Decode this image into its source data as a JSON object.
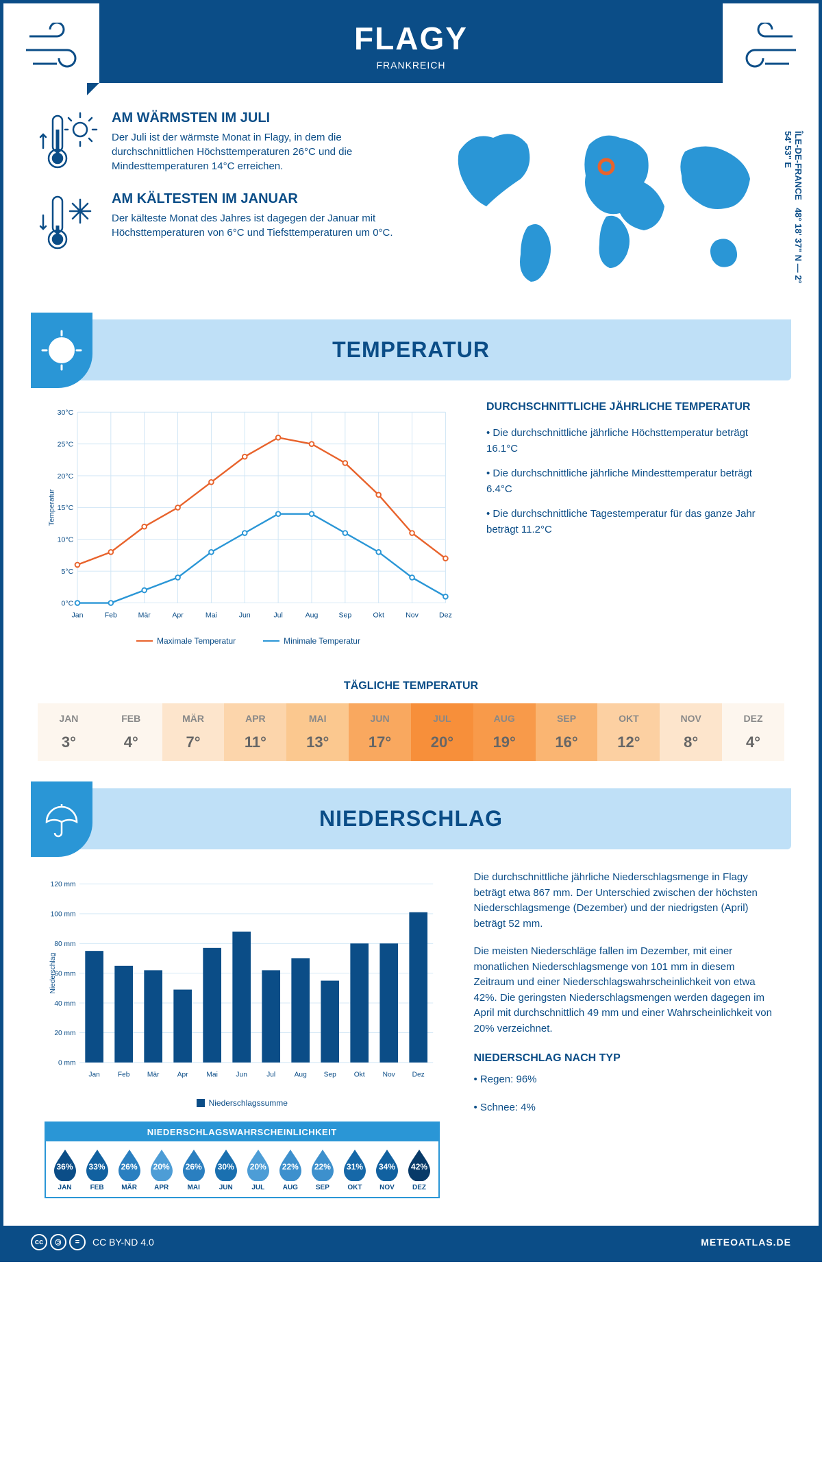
{
  "header": {
    "title": "FLAGY",
    "subtitle": "FRANKREICH"
  },
  "coords": "48° 18' 37\" N — 2° 54' 53\" E",
  "region": "ÎLE-DE-FRANCE",
  "warmest": {
    "title": "AM WÄRMSTEN IM JULI",
    "text": "Der Juli ist der wärmste Monat in Flagy, in dem die durchschnittlichen Höchsttemperaturen 26°C und die Mindesttemperaturen 14°C erreichen."
  },
  "coldest": {
    "title": "AM KÄLTESTEN IM JANUAR",
    "text": "Der kälteste Monat des Jahres ist dagegen der Januar mit Höchsttemperaturen von 6°C und Tiefsttemperaturen um 0°C."
  },
  "temp_section": {
    "title": "TEMPERATUR",
    "chart": {
      "type": "line",
      "months": [
        "Jan",
        "Feb",
        "Mär",
        "Apr",
        "Mai",
        "Jun",
        "Jul",
        "Aug",
        "Sep",
        "Okt",
        "Nov",
        "Dez"
      ],
      "max_temp": [
        6,
        8,
        12,
        15,
        19,
        23,
        26,
        25,
        22,
        17,
        11,
        7
      ],
      "min_temp": [
        0,
        0,
        2,
        4,
        8,
        11,
        14,
        14,
        11,
        8,
        4,
        1
      ],
      "max_color": "#e8632c",
      "min_color": "#2a96d6",
      "ylim": [
        0,
        30
      ],
      "ytick_step": 5,
      "ylabel": "Temperatur",
      "grid_color": "#cfe5f5",
      "legend_max": "Maximale Temperatur",
      "legend_min": "Minimale Temperatur"
    },
    "desc_title": "DURCHSCHNITTLICHE JÄHRLICHE TEMPERATUR",
    "desc_bullets": [
      "• Die durchschnittliche jährliche Höchsttemperatur beträgt 16.1°C",
      "• Die durchschnittliche jährliche Mindesttemperatur beträgt 6.4°C",
      "• Die durchschnittliche Tagestemperatur für das ganze Jahr beträgt 11.2°C"
    ],
    "daily_title": "TÄGLICHE TEMPERATUR",
    "daily": {
      "months": [
        "JAN",
        "FEB",
        "MÄR",
        "APR",
        "MAI",
        "JUN",
        "JUL",
        "AUG",
        "SEP",
        "OKT",
        "NOV",
        "DEZ"
      ],
      "values": [
        "3°",
        "4°",
        "7°",
        "11°",
        "13°",
        "17°",
        "20°",
        "19°",
        "16°",
        "12°",
        "8°",
        "4°"
      ],
      "colors": [
        "#fdf6ee",
        "#fdf6ee",
        "#fde5cc",
        "#fcd5ab",
        "#fbc88f",
        "#f9a85f",
        "#f78f3a",
        "#f89a4a",
        "#fab572",
        "#fcd0a2",
        "#fde5cc",
        "#fdf6ee"
      ]
    }
  },
  "precip_section": {
    "title": "NIEDERSCHLAG",
    "chart": {
      "type": "bar",
      "months": [
        "Jan",
        "Feb",
        "Mär",
        "Apr",
        "Mai",
        "Jun",
        "Jul",
        "Aug",
        "Sep",
        "Okt",
        "Nov",
        "Dez"
      ],
      "values": [
        75,
        65,
        62,
        49,
        77,
        88,
        62,
        70,
        55,
        80,
        80,
        101
      ],
      "ylim": [
        0,
        120
      ],
      "ytick_step": 20,
      "ylabel": "Niederschlag",
      "bar_color": "#0b4d87",
      "grid_color": "#cfe5f5",
      "legend": "Niederschlagssumme"
    },
    "text1": "Die durchschnittliche jährliche Niederschlagsmenge in Flagy beträgt etwa 867 mm. Der Unterschied zwischen der höchsten Niederschlagsmenge (Dezember) und der niedrigsten (April) beträgt 52 mm.",
    "text2": "Die meisten Niederschläge fallen im Dezember, mit einer monatlichen Niederschlagsmenge von 101 mm in diesem Zeitraum und einer Niederschlagswahrscheinlichkeit von etwa 42%. Die geringsten Niederschlagsmengen werden dagegen im April mit durchschnittlich 49 mm und einer Wahrscheinlichkeit von 20% verzeichnet.",
    "type_title": "NIEDERSCHLAG NACH TYP",
    "type_bullets": [
      "• Regen: 96%",
      "• Schnee: 4%"
    ],
    "prob_title": "NIEDERSCHLAGSWAHRSCHEINLICHKEIT",
    "prob": {
      "months": [
        "JAN",
        "FEB",
        "MÄR",
        "APR",
        "MAI",
        "JUN",
        "JUL",
        "AUG",
        "SEP",
        "OKT",
        "NOV",
        "DEZ"
      ],
      "values": [
        "36%",
        "33%",
        "26%",
        "20%",
        "26%",
        "30%",
        "20%",
        "22%",
        "22%",
        "31%",
        "34%",
        "42%"
      ],
      "colors": [
        "#0b4d87",
        "#1161a0",
        "#2a7fc0",
        "#4d9dd6",
        "#2a7fc0",
        "#1a70b0",
        "#4d9dd6",
        "#3d90cd",
        "#3d90cd",
        "#1668a8",
        "#1161a0",
        "#083a68"
      ]
    }
  },
  "footer": {
    "license": "CC BY-ND 4.0",
    "site": "METEOATLAS.DE"
  }
}
